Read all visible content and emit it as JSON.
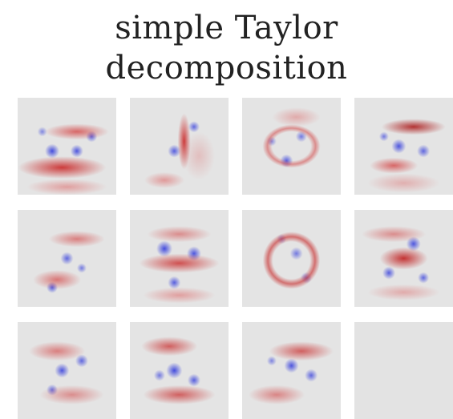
{
  "figure": {
    "title_lines": [
      "simple Taylor",
      "decomposition"
    ]
  }
}
